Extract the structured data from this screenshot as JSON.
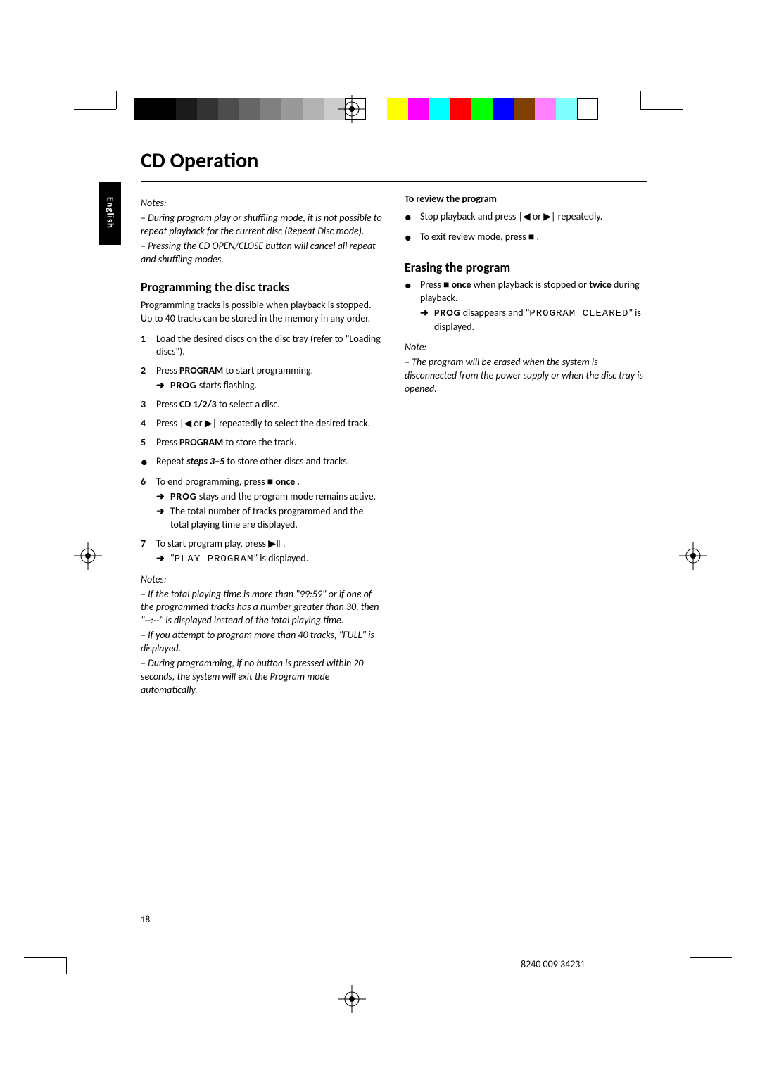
{
  "colorBarLeft": [
    "#000000",
    "#000000",
    "#1a1a1a",
    "#333333",
    "#4d4d4d",
    "#666666",
    "#808080",
    "#999999",
    "#b3b3b3",
    "#cccccc",
    "#ffffff"
  ],
  "colorBarRight": [
    "#ffff00",
    "#ff00ff",
    "#00ffff",
    "#ff0000",
    "#00ff00",
    "#0000ff",
    "#804000",
    "#ff80ff",
    "#80ffff",
    "#ffffff"
  ],
  "langTab": "English",
  "pageTitle": "CD Operation",
  "col1": {
    "notes1": {
      "head": "Notes:",
      "items": [
        "– During program play or shuffling mode, it is not possible to repeat playback for the current disc (Repeat Disc mode).",
        "– Pressing the CD OPEN/CLOSE button will cancel all repeat and shuffling modes."
      ]
    },
    "secTitle": "Programming the disc tracks",
    "intro": "Programming tracks is possible when playback is stopped. Up to 40 tracks can be stored in the memory in any order.",
    "steps": [
      {
        "n": "1",
        "body": "Load the desired discs on the disc tray (refer to \"Loading discs\")."
      },
      {
        "n": "2",
        "body_pre": "Press ",
        "body_b": "PROGRAM",
        "body_post": " to start programming.",
        "arrow_pre": "",
        "arrow_b": "PROG",
        "arrow_post": " starts flashing."
      },
      {
        "n": "3",
        "body_pre": "Press ",
        "body_b": "CD 1/2/3",
        "body_post": " to select a disc."
      },
      {
        "n": "4",
        "body": "Press  |◀  or  ▶|  repeatedly to select the desired track."
      },
      {
        "n": "5",
        "body_pre": "Press ",
        "body_b": "PROGRAM",
        "body_post": " to store the track."
      },
      {
        "bullet": true,
        "body_pre": "Repeat ",
        "body_bi": "steps 3–5",
        "body_post": " to store other discs and tracks."
      },
      {
        "n": "6",
        "body_pre": "To end programming, press  ■  ",
        "body_b": "once",
        "body_post": " .",
        "arrow_b": "PROG",
        "arrow_post": " stays and the program mode remains active.",
        "arrow2": "The total number of tracks programmed and the total playing time are displayed."
      },
      {
        "n": "7",
        "body": "To start program play, press  ▶Ⅱ .",
        "arrow_pre": "\"",
        "arrow_lcd": "PLAY PROGRAM",
        "arrow_post": "\" is displayed."
      }
    ],
    "notes2": {
      "head": "Notes:",
      "items": [
        "– If the total playing time is more than \"99:59\" or if one of the programmed tracks has a number greater than 30, then \"--:--\" is displayed instead of the total playing time.",
        "– If you attempt to program more than 40 tracks, \"FULL\" is displayed.",
        "– During programming, if no button is pressed within 20 seconds, the system will exit the Program mode automatically."
      ]
    }
  },
  "col2": {
    "reviewTitle": "To review the program",
    "reviewBullets": [
      "Stop playback and press  |◀  or  ▶|  repeatedly.",
      "To exit review mode, press  ■ ."
    ],
    "eraseTitle": "Erasing the program",
    "eraseBullet_pre": "Press  ■  ",
    "eraseBullet_b1": "once",
    "eraseBullet_mid": " when playback is stopped or ",
    "eraseBullet_b2": "twice",
    "eraseBullet_post": " during playback.",
    "eraseArrow_b": "PROG",
    "eraseArrow_mid": " disappears and \"",
    "eraseArrow_lcd": "PROGRAM CLEARED",
    "eraseArrow_post": "\" is displayed.",
    "note": {
      "head": "Note:",
      "item": "– The program will be erased when the system is disconnected from the power supply or when the disc tray is opened."
    }
  },
  "pageNum": "18",
  "docNum": "8240 009 34231"
}
